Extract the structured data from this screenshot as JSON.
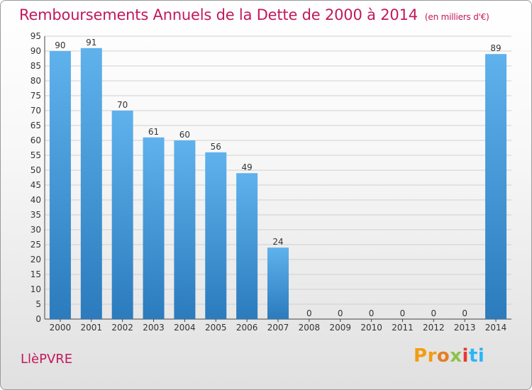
{
  "header": {
    "title": "Remboursements Annuels de la Dette de 2000 à 2014",
    "unit": "(en milliers d'€)"
  },
  "footer": {
    "commune": "LlèPVRE",
    "logo_text": "Proxiti",
    "logo_colors": [
      "#f39c12",
      "#f39c12",
      "#e67e22",
      "#8bc34a",
      "#e53935",
      "#29b6f6",
      "#29b6f6"
    ]
  },
  "colors": {
    "bar_top": "#5fb2ec",
    "bar_bottom": "#2b7bbd",
    "grid": "#d0d0d0",
    "text": "#333333"
  },
  "chart_data": {
    "type": "bar",
    "title": "Remboursements Annuels de la Dette de 2000 à 2014",
    "categories": [
      "2000",
      "2001",
      "2002",
      "2003",
      "2004",
      "2005",
      "2006",
      "2007",
      "2008",
      "2009",
      "2010",
      "2011",
      "2012",
      "2013",
      "2014"
    ],
    "values": [
      90,
      91,
      70,
      61,
      60,
      56,
      49,
      24,
      0,
      0,
      0,
      0,
      0,
      0,
      89
    ],
    "ylim": [
      0,
      95
    ],
    "yticks": [
      0,
      5,
      10,
      15,
      20,
      25,
      30,
      35,
      40,
      45,
      50,
      55,
      60,
      65,
      70,
      75,
      80,
      85,
      90,
      95
    ],
    "grid": true,
    "data_labels": true
  }
}
